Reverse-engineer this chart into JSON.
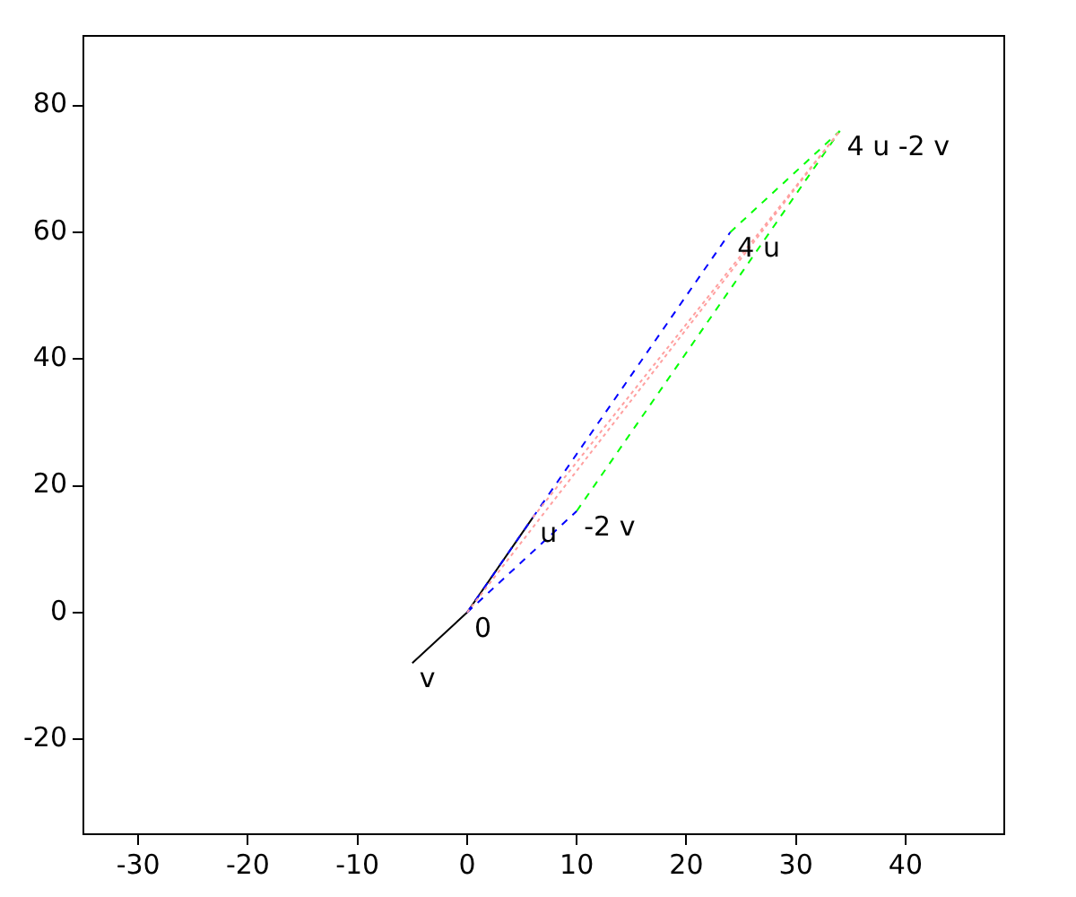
{
  "chart_data": {
    "type": "line",
    "marker": "none",
    "legend": false,
    "grid": false,
    "xlim": [
      -35,
      49
    ],
    "xticks": [
      -30,
      -20,
      -10,
      0,
      10,
      20,
      30,
      40
    ],
    "ylim": [
      -35,
      91
    ],
    "yticks": [
      -20,
      0,
      20,
      40,
      60,
      80
    ],
    "series": [
      {
        "color": "#ffa0a0",
        "line_style": "dotted",
        "x": [
          0,
          34
        ],
        "values": [
          0,
          76
        ]
      },
      {
        "color": "#ffa0a0",
        "line_style": "dotted",
        "x": [
          6,
          34
        ],
        "values": [
          15,
          76
        ]
      },
      {
        "color": "#0000ff",
        "line_style": "dashed",
        "x": [
          0,
          24
        ],
        "values": [
          0,
          60
        ]
      },
      {
        "color": "#0000ff",
        "line_style": "dashed",
        "x": [
          0,
          10
        ],
        "values": [
          0,
          16
        ]
      },
      {
        "color": "#00ff00",
        "line_style": "dashed",
        "x": [
          10,
          34
        ],
        "values": [
          16,
          76
        ]
      },
      {
        "color": "#00ff00",
        "line_style": "dashed",
        "x": [
          24,
          34
        ],
        "values": [
          60,
          76
        ]
      },
      {
        "color": "#000000",
        "line_style": "solid",
        "x": [
          -5,
          0,
          6
        ],
        "values": [
          -8,
          0,
          15
        ]
      }
    ],
    "annotations": [
      {
        "text": "0",
        "x": 0,
        "y": 0
      },
      {
        "text": "u",
        "x": 6,
        "y": 15
      },
      {
        "text": "v",
        "x": -5,
        "y": -8
      },
      {
        "text": "4 u",
        "x": 24,
        "y": 60
      },
      {
        "text": "-2 v",
        "x": 10,
        "y": 16
      },
      {
        "text": "4 u -2 v",
        "x": 34,
        "y": 76
      }
    ]
  }
}
